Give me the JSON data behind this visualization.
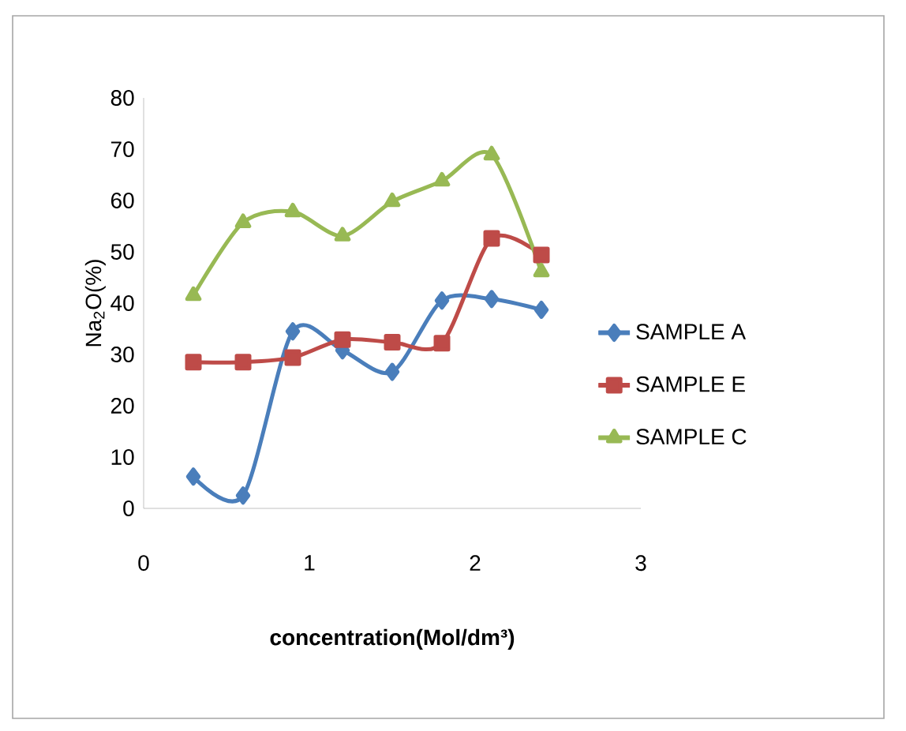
{
  "chart_data": {
    "type": "line",
    "xlabel": "concentration(Mol/dm³)",
    "ylabel": "Na$_{2}$O(%)",
    "x": [
      0.3,
      0.6,
      0.9,
      1.2,
      1.5,
      1.8,
      2.1,
      2.4
    ],
    "series": [
      {
        "name": "SAMPLE A",
        "color": "#4a7ebb",
        "marker": "diamond",
        "values": [
          6.2,
          2.5,
          34.5,
          30.8,
          26.6,
          40.5,
          40.8,
          38.7
        ]
      },
      {
        "name": "SAMPLE E",
        "color": "#be4b48",
        "marker": "square",
        "values": [
          28.5,
          28.5,
          29.4,
          32.9,
          32.4,
          32.2,
          52.6,
          49.4
        ]
      },
      {
        "name": "SAMPLE C",
        "color": "#98b954",
        "marker": "triangle",
        "values": [
          41.5,
          55.7,
          57.8,
          53.1,
          59.8,
          63.8,
          68.9,
          46.1
        ]
      }
    ],
    "xlim": [
      0,
      3
    ],
    "ylim": [
      0,
      80
    ],
    "xticks": [
      0,
      1,
      2,
      3
    ],
    "yticks": [
      0,
      10,
      20,
      30,
      40,
      50,
      60,
      70,
      80
    ],
    "grid": false,
    "legend": "right",
    "line_style": "solid"
  }
}
